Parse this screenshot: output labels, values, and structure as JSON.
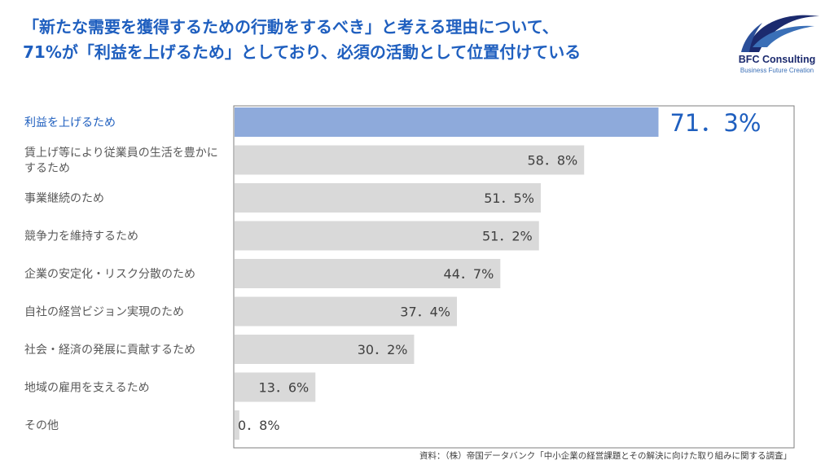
{
  "title_lines": [
    "「新たな需要を獲得するための行動をするべき」と考える理由について、",
    "71%が「利益を上げるため」としており、必須の活動として位置付けている"
  ],
  "logo": {
    "name": "BFC Consulting",
    "tagline": "Business Future Creation"
  },
  "source": "資料：（株）帝国データバンク「中小企業の経営課題とその解決に向けた取り組みに関する調査」",
  "colors": {
    "title": "#1f5fbf",
    "highlight_bar": "#8eaadb",
    "bar": "#d9d9d9",
    "highlight_label": "#1f5fbf",
    "label": "#595959",
    "value": "#404040"
  },
  "chart_data": {
    "type": "bar",
    "orientation": "horizontal",
    "categories": [
      "利益を上げるため",
      "賃上げ等により従業員の生活を豊かにするため",
      "事業継続のため",
      "競争力を維持するため",
      "企業の安定化・リスク分散のため",
      "自社の経営ビジョン実現のため",
      "社会・経済の発展に貢献するため",
      "地域の雇用を支えるため",
      "その他"
    ],
    "values": [
      71.3,
      58.8,
      51.5,
      51.2,
      44.7,
      37.4,
      30.2,
      13.6,
      0.8
    ],
    "value_labels": [
      "71．3%",
      "58．8%",
      "51．5%",
      "51．2%",
      "44．7%",
      "37．4%",
      "30．2%",
      "13．6%",
      "0．8%"
    ],
    "highlight_index": 0,
    "xlim": [
      0,
      100
    ],
    "grid": false
  }
}
